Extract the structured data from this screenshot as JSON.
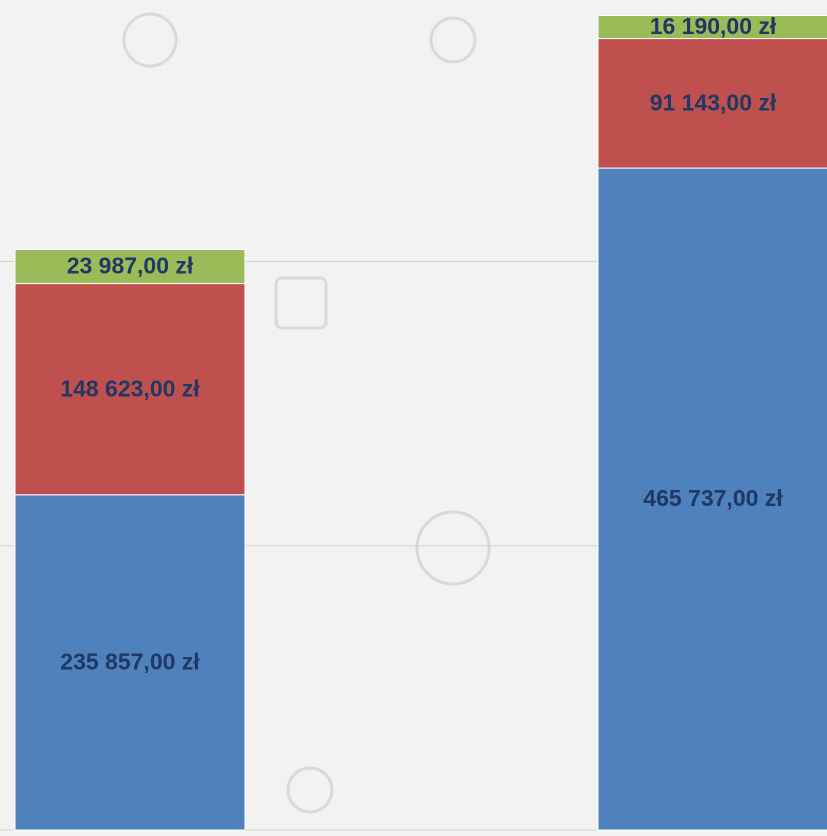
{
  "chart_data": {
    "type": "stacked_bar",
    "categories": [
      null,
      null
    ],
    "series": [
      {
        "color": "#4f81bd",
        "values": [
          235857,
          465737
        ],
        "value_labels": [
          "235 857,00  zł",
          "465 737,00  zł"
        ]
      },
      {
        "color": "#c0504d",
        "values": [
          148623,
          91143
        ],
        "value_labels": [
          "148 623,00  zł",
          "91 143,00  zł"
        ]
      },
      {
        "color": "#9bbb59",
        "values": [
          23987,
          16190
        ],
        "value_labels": [
          "23 987,00  zł",
          "16 190,00  zł"
        ]
      }
    ],
    "ylim": [
      0,
      584000
    ],
    "yticks": [
      0,
      200000,
      400000
    ],
    "grid": true,
    "tick_labels": false,
    "label_color": "#1f3864"
  }
}
